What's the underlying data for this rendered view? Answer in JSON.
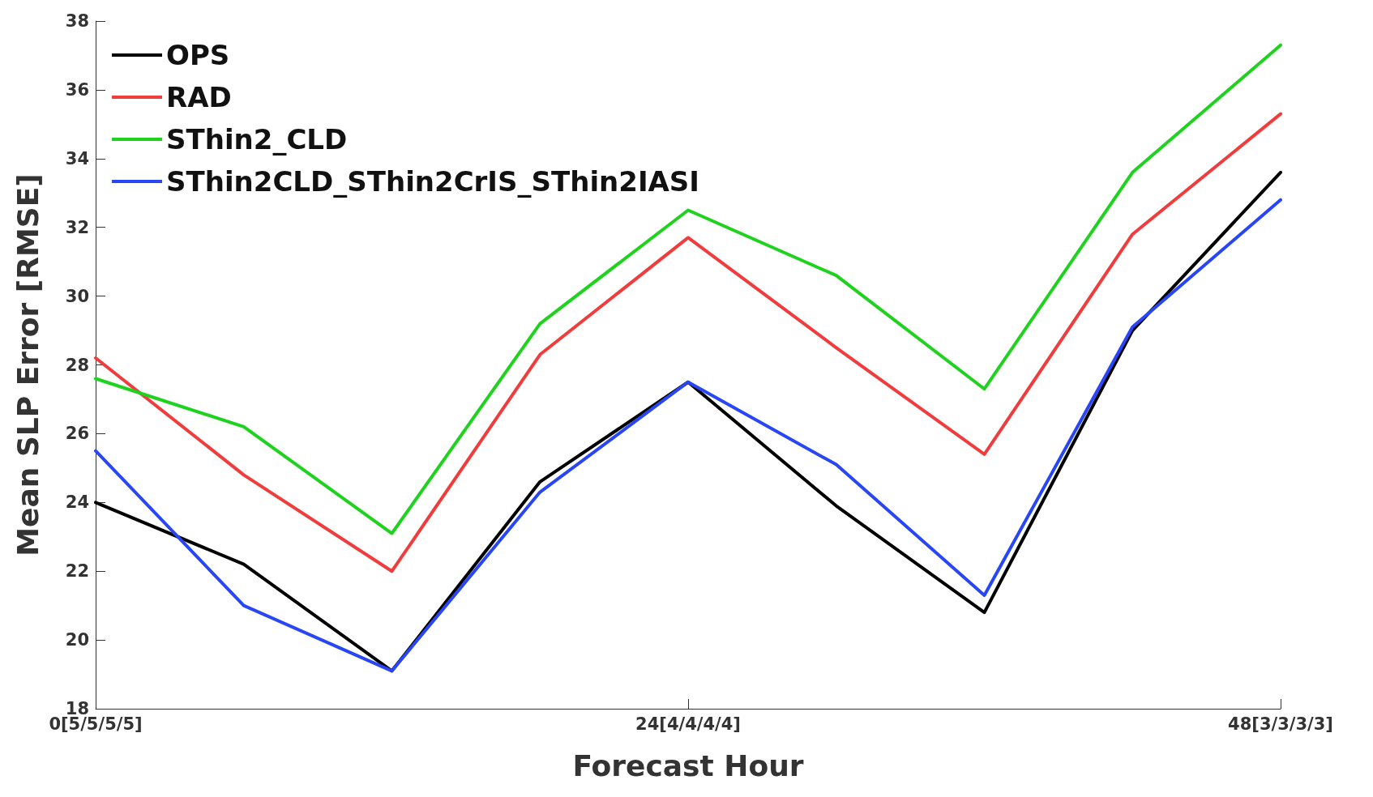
{
  "chart_data": {
    "type": "line",
    "xlabel": "Forecast Hour",
    "ylabel": "Mean SLP Error [RMSE]",
    "categories": [
      "0[5/5/5/5]",
      null,
      null,
      null,
      "24[4/4/4/4]",
      null,
      null,
      null,
      "48[3/3/3/3]"
    ],
    "ylim": [
      18,
      38
    ],
    "yticks": [
      18,
      20,
      22,
      24,
      26,
      28,
      30,
      32,
      34,
      36,
      38
    ],
    "grid": false,
    "legend": "top left",
    "marker": "none",
    "line_style": "solid",
    "series": [
      {
        "name": "OPS",
        "color": "#000000",
        "values": [
          24.0,
          22.2,
          19.1,
          24.6,
          27.5,
          23.9,
          20.8,
          29.0,
          33.6
        ]
      },
      {
        "name": "RAD",
        "color": "#f03c3c",
        "values": [
          28.2,
          24.8,
          22.0,
          28.3,
          31.7,
          28.5,
          25.4,
          31.8,
          35.3
        ]
      },
      {
        "name": "SThin2_CLD",
        "color": "#1ed21e",
        "values": [
          27.6,
          26.2,
          23.1,
          29.2,
          32.5,
          30.6,
          27.3,
          33.6,
          37.3
        ]
      },
      {
        "name": "SThin2CLD_SThin2CrIS_SThin2IASI",
        "color": "#2846f5",
        "values": [
          25.5,
          21.0,
          19.1,
          24.3,
          27.5,
          25.1,
          21.3,
          29.1,
          32.8
        ]
      }
    ]
  }
}
